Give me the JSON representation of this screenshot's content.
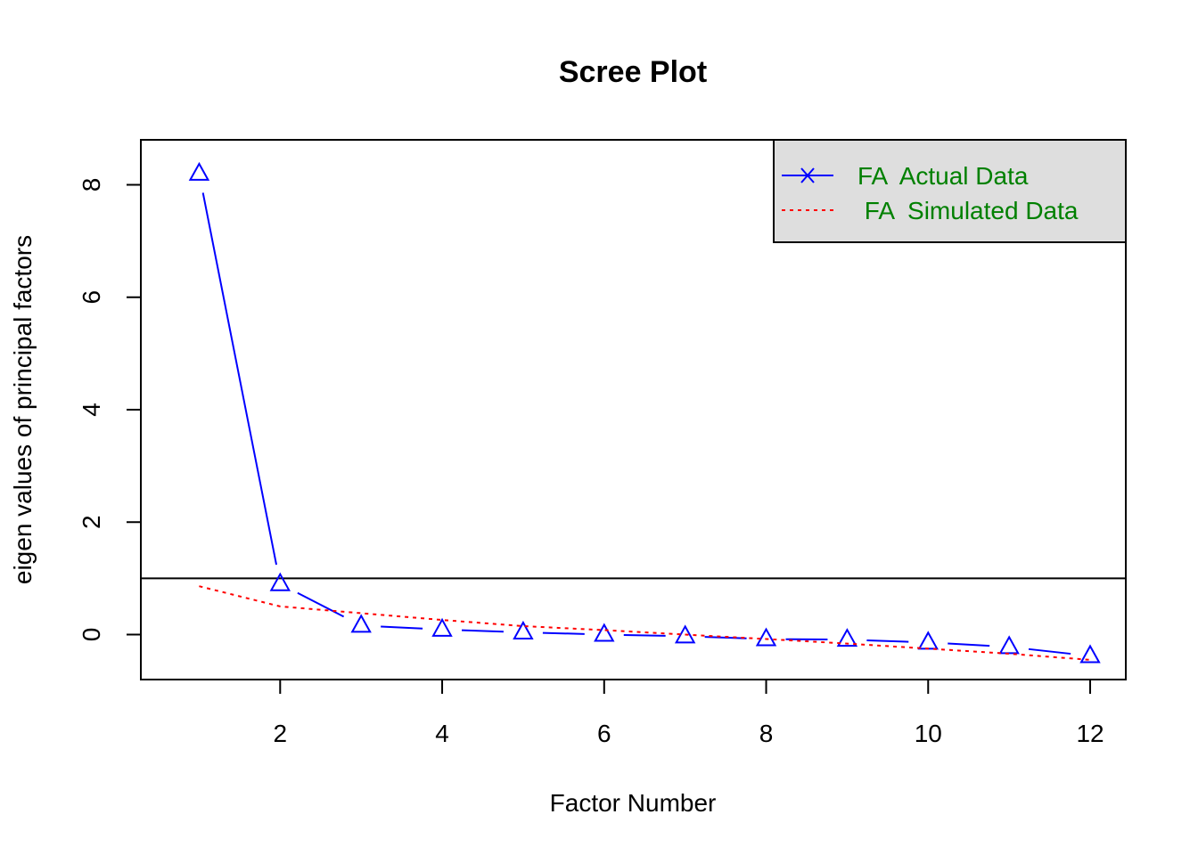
{
  "chart_data": {
    "type": "line",
    "title": "Scree Plot",
    "xlabel": "Factor Number",
    "ylabel": "eigen values of principal factors",
    "xlim": [
      0.28,
      12.44
    ],
    "ylim": [
      -0.8,
      8.8
    ],
    "x_ticks": [
      2,
      4,
      6,
      8,
      10,
      12
    ],
    "y_ticks": [
      0,
      2,
      4,
      6,
      8
    ],
    "reference_line": {
      "y": 1,
      "color": "#000000"
    },
    "x": [
      1,
      2,
      3,
      4,
      5,
      6,
      7,
      8,
      9,
      10,
      11,
      12
    ],
    "series": [
      {
        "name": "FA  Actual Data",
        "values": [
          8.2,
          0.9,
          0.16,
          0.09,
          0.04,
          0.0,
          -0.03,
          -0.08,
          -0.09,
          -0.14,
          -0.22,
          -0.38
        ],
        "color": "#0000ff",
        "line_style": "solid",
        "marker": "triangle"
      },
      {
        "name": " FA  Simulated Data",
        "values": [
          0.86,
          0.5,
          0.38,
          0.26,
          0.15,
          0.08,
          0.0,
          -0.08,
          -0.16,
          -0.25,
          -0.34,
          -0.45
        ],
        "color": "#ff0000",
        "line_style": "dotted",
        "marker": "none"
      }
    ],
    "legend": {
      "placement": "top-right",
      "background": "#dedede",
      "text_color": "#008000"
    },
    "grid": false
  }
}
